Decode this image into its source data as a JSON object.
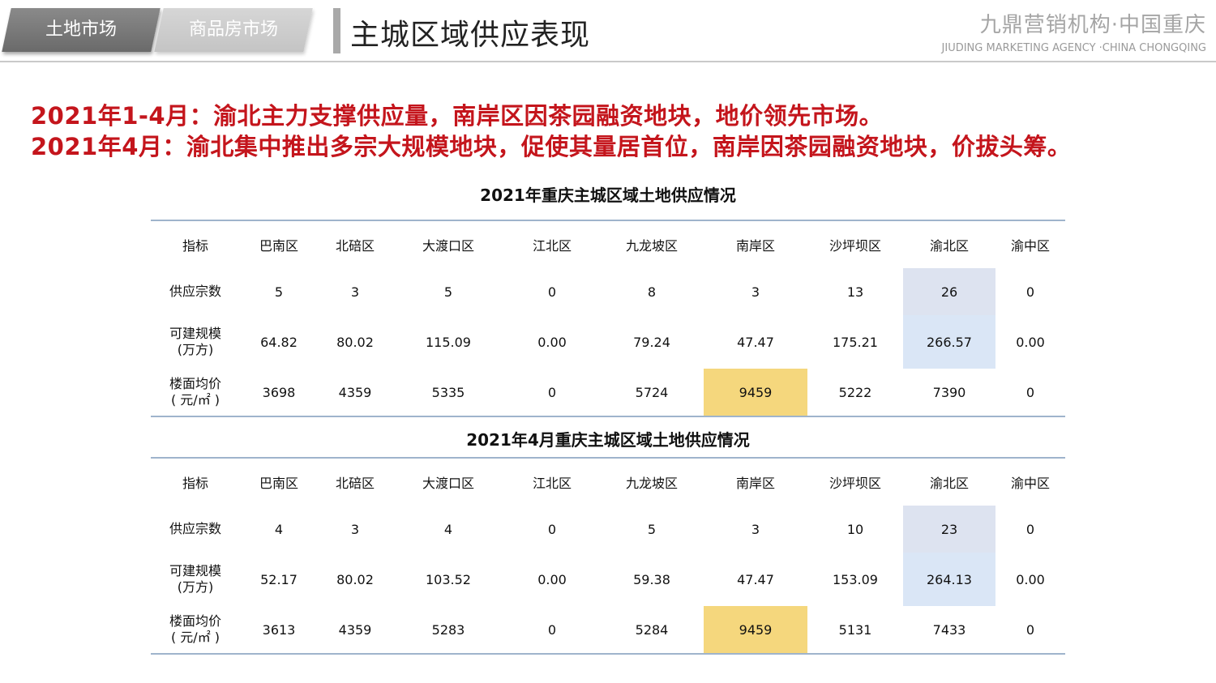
{
  "header": {
    "tabs": [
      {
        "label": "土地市场",
        "active": true
      },
      {
        "label": "商品房市场",
        "active": false
      }
    ],
    "page_title": "主城区域供应表现",
    "brand_cn": "九鼎营销机构·中国重庆",
    "brand_en": "JIUDING MARKETING AGENCY ·CHINA CHONGQING"
  },
  "headline": {
    "line1": "2021年1-4月：渝北主力支撑供应量，南岸区因茶园融资地块，地价领先市场。",
    "line2": "2021年4月：渝北集中推出多宗大规模地块，促使其量居首位，南岸因茶园融资地块，价拔头筹。"
  },
  "colors": {
    "headline": "#c4151c",
    "highlight_blue_row1": "#dde3f0",
    "highlight_blue_row2": "#dae6f6",
    "highlight_gold": "#f5d77d",
    "rule": "#9fb4cc"
  },
  "tables": [
    {
      "title": "2021年重庆主城区域土地供应情况",
      "columns": [
        "指标",
        "巴南区",
        "北碚区",
        "大渡口区",
        "江北区",
        "九龙坡区",
        "南岸区",
        "沙坪坝区",
        "渝北区",
        "渝中区"
      ],
      "rows": [
        {
          "label": "供应宗数",
          "values": [
            "5",
            "3",
            "5",
            "0",
            "8",
            "3",
            "13",
            "26",
            "0"
          ]
        },
        {
          "label": "可建规模\n(万方)",
          "values": [
            "64.82",
            "80.02",
            "115.09",
            "0.00",
            "79.24",
            "47.47",
            "175.21",
            "266.57",
            "0.00"
          ]
        },
        {
          "label": "楼面均价\n( 元/㎡ )",
          "values": [
            "3698",
            "4359",
            "5335",
            "0",
            "5724",
            "9459",
            "5222",
            "7390",
            "0"
          ]
        }
      ]
    },
    {
      "title": "2021年4月重庆主城区域土地供应情况",
      "columns": [
        "指标",
        "巴南区",
        "北碚区",
        "大渡口区",
        "江北区",
        "九龙坡区",
        "南岸区",
        "沙坪坝区",
        "渝北区",
        "渝中区"
      ],
      "rows": [
        {
          "label": "供应宗数",
          "values": [
            "4",
            "3",
            "4",
            "0",
            "5",
            "3",
            "10",
            "23",
            "0"
          ]
        },
        {
          "label": "可建规模\n(万方)",
          "values": [
            "52.17",
            "80.02",
            "103.52",
            "0.00",
            "59.38",
            "47.47",
            "153.09",
            "264.13",
            "0.00"
          ]
        },
        {
          "label": "楼面均价\n( 元/㎡ )",
          "values": [
            "3613",
            "4359",
            "5283",
            "0",
            "5284",
            "9459",
            "5131",
            "7433",
            "0"
          ]
        }
      ]
    }
  ]
}
